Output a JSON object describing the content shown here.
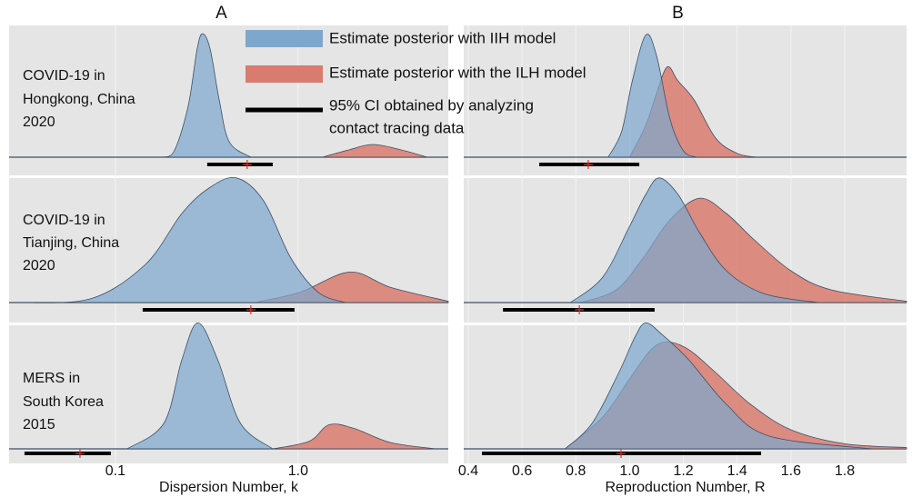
{
  "legend": [
    {
      "label": "Estimate posterior with IIH model",
      "color": "#7ea7cd"
    },
    {
      "label": "Estimate posterior with the ILH model",
      "color": "#d97b6e"
    },
    {
      "lines": [
        "95% CI obtained by analyzing",
        "contact tracing data"
      ],
      "color": "#000000"
    }
  ],
  "row_labels": [
    [
      "COVID-19 in",
      "Hongkong, China",
      "2020"
    ],
    [
      "COVID-19 in",
      "Tianjing, China",
      "2020"
    ],
    [
      "MERS in",
      "South Korea",
      "2015"
    ]
  ],
  "chart_data": [
    {
      "type": "ridgeline",
      "title": "A",
      "xlabel": "Dispersion Number, k",
      "xscale": "log",
      "xlim": [
        0.0262,
        6.63
      ],
      "xticks": [
        0.1,
        {
          "value": 1,
          "label": "1.0"
        }
      ],
      "grid": true,
      "rows": [
        {
          "series": [
            {
              "x": [
                0.18,
                0.21,
                0.25,
                0.28,
                0.3,
                0.33,
                0.37,
                0.42,
                0.55
              ],
              "values": [
                0,
                0.05,
                0.4,
                0.85,
                0.97,
                0.85,
                0.45,
                0.12,
                0
              ]
            },
            {
              "x": [
                1.36,
                1.92,
                2.56,
                3.61,
                5.08
              ],
              "values": [
                0,
                0.06,
                0.1,
                0.06,
                0
              ]
            }
          ],
          "ci": [
            0.318,
            0.726
          ],
          "estimate": 0.526
        },
        {
          "series": [
            {
              "x": [
                0.0294,
                0.0734,
                0.146,
                0.231,
                0.325,
                0.459,
                0.647,
                0.912,
                1.29,
                1.81
              ],
              "values": [
                0,
                0.03,
                0.3,
                0.7,
                0.9,
                0.98,
                0.8,
                0.35,
                0.08,
                0
              ]
            },
            {
              "x": [
                0.577,
                1.02,
                1.92,
                3.2,
                6.63
              ],
              "values": [
                0,
                0.08,
                0.24,
                0.12,
                0.01
              ]
            }
          ],
          "ci": [
            0.141,
            0.955
          ],
          "estimate": 0.551
        },
        {
          "series": [
            {
              "x": [
                0.116,
                0.184,
                0.231,
                0.283,
                0.363,
                0.484,
                0.726
              ],
              "values": [
                0,
                0.2,
                0.7,
                0.99,
                0.7,
                0.2,
                0
              ]
            },
            {
              "x": [
                0.726,
                1.15,
                1.48,
                2.03,
                3.2,
                5.68
              ],
              "values": [
                0,
                0.06,
                0.19,
                0.16,
                0.05,
                0
              ]
            }
          ],
          "ci": [
            0.0318,
            0.0944
          ],
          "estimate": 0.064
        }
      ]
    },
    {
      "type": "ridgeline",
      "title": "B",
      "xlabel": "Reproduction Number, R",
      "xscale": "linear",
      "xlim": [
        0.383,
        2.03
      ],
      "xticks": [
        0.4,
        0.6,
        0.8,
        {
          "value": 1,
          "label": "1.0"
        },
        1.2,
        1.4,
        1.6,
        1.8
      ],
      "grid": true,
      "rows": [
        {
          "series": [
            {
              "x": [
                0.92,
                0.97,
                1.01,
                1.06,
                1.1,
                1.15,
                1.2,
                1.25
              ],
              "values": [
                0,
                0.2,
                0.6,
                0.96,
                0.8,
                0.3,
                0.05,
                0
              ]
            },
            {
              "x": [
                1.0,
                1.06,
                1.1,
                1.14,
                1.18,
                1.24,
                1.32,
                1.4,
                1.47
              ],
              "values": [
                0,
                0.25,
                0.5,
                0.71,
                0.6,
                0.45,
                0.15,
                0.03,
                0
              ]
            }
          ],
          "ci": [
            0.664,
            1.036
          ],
          "estimate": 0.846
        },
        {
          "series": [
            {
              "x": [
                0.78,
                0.9,
                1.0,
                1.06,
                1.11,
                1.18,
                1.26,
                1.36,
                1.5,
                1.7
              ],
              "values": [
                0,
                0.2,
                0.6,
                0.85,
                0.98,
                0.85,
                0.55,
                0.25,
                0.07,
                0
              ]
            },
            {
              "x": [
                0.82,
                0.95,
                1.05,
                1.15,
                1.26,
                1.36,
                1.46,
                1.6,
                1.75,
                2.03
              ],
              "values": [
                0,
                0.1,
                0.35,
                0.65,
                0.82,
                0.7,
                0.5,
                0.25,
                0.1,
                0.01
              ]
            }
          ],
          "ci": [
            0.529,
            1.093
          ],
          "estimate": 0.813
        },
        {
          "series": [
            {
              "x": [
                0.76,
                0.86,
                0.96,
                1.02,
                1.06,
                1.12,
                1.22,
                1.36,
                1.52,
                1.9
              ],
              "values": [
                0,
                0.2,
                0.6,
                0.88,
                0.99,
                0.9,
                0.7,
                0.35,
                0.1,
                0
              ]
            },
            {
              "x": [
                0.76,
                0.9,
                1.0,
                1.08,
                1.14,
                1.22,
                1.32,
                1.45,
                1.6,
                1.8,
                2.03
              ],
              "values": [
                0,
                0.25,
                0.55,
                0.78,
                0.84,
                0.78,
                0.6,
                0.35,
                0.15,
                0.04,
                0.01
              ]
            }
          ],
          "ci": [
            0.451,
            1.489
          ],
          "estimate": 0.968
        }
      ]
    }
  ]
}
